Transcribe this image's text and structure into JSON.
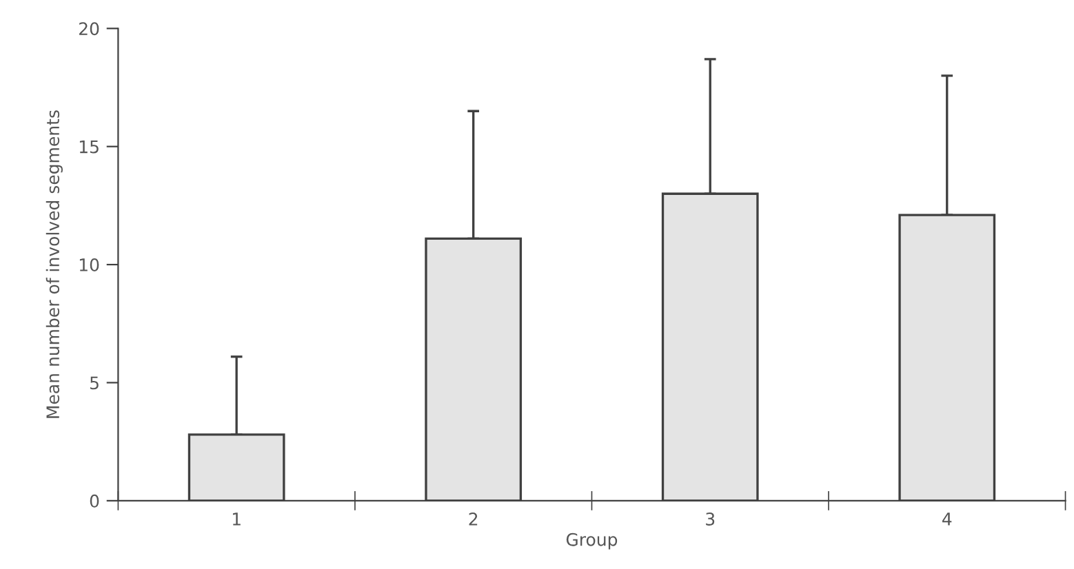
{
  "chart_data": {
    "type": "bar",
    "xlabel": "Group",
    "ylabel": "Mean number of involved segments",
    "categories": [
      "1",
      "2",
      "3",
      "4"
    ],
    "values": [
      2.8,
      11.1,
      13.0,
      12.1
    ],
    "errors": [
      [
        2.8,
        6.1
      ],
      [
        11.1,
        16.5
      ],
      [
        13.0,
        18.7
      ],
      [
        12.1,
        18.0
      ]
    ],
    "color": "#e4e4e4",
    "ylim": [
      0,
      20
    ],
    "yticks": [
      0,
      5,
      10,
      15,
      20
    ],
    "grid": false,
    "legend": false
  }
}
